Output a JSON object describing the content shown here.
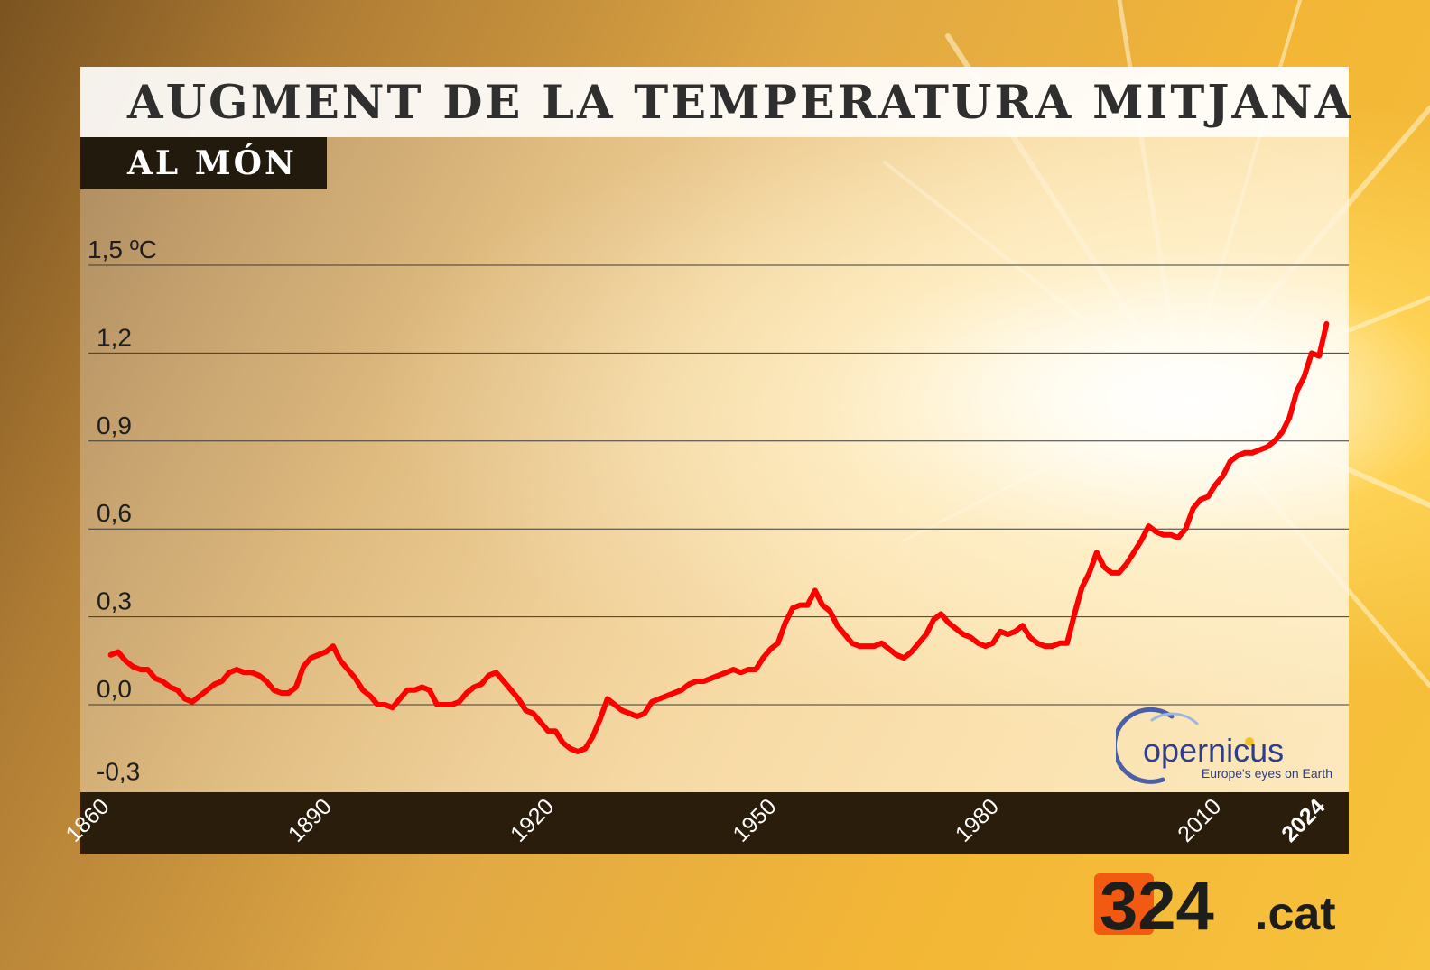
{
  "title": "AUGMENT DE LA TEMPERATURA MITJANA",
  "subtitle": "AL MÓN",
  "logos": {
    "copernicus_name": "opernicus",
    "copernicus_tagline": "Europe's eyes on Earth",
    "brand_number": "324",
    "brand_suffix": ".cat",
    "brand_color": "#f25a12"
  },
  "colors": {
    "line": "#ff0000",
    "x_band": "#2a1d0c",
    "subtitle_box": "#231a0e"
  },
  "chart_data": {
    "type": "line",
    "title": "AUGMENT DE LA TEMPERATURA MITJANA",
    "subtitle": "AL MÓN",
    "xlabel": "",
    "ylabel": "",
    "xlim": [
      1857,
      2027
    ],
    "ylim": [
      -0.3,
      1.5
    ],
    "grid": true,
    "y_ticks": [
      {
        "value": 1.5,
        "label": "1,5 ºC"
      },
      {
        "value": 1.2,
        "label": "1,2"
      },
      {
        "value": 0.9,
        "label": "0,9"
      },
      {
        "value": 0.6,
        "label": "0,6"
      },
      {
        "value": 0.3,
        "label": "0,3"
      },
      {
        "value": 0.0,
        "label": "0,0"
      },
      {
        "value": -0.3,
        "label": "-0,3"
      }
    ],
    "x_ticks": [
      {
        "value": 1860,
        "label": "1860"
      },
      {
        "value": 1890,
        "label": "1890"
      },
      {
        "value": 1920,
        "label": "1920"
      },
      {
        "value": 1950,
        "label": "1950"
      },
      {
        "value": 1980,
        "label": "1980"
      },
      {
        "value": 2010,
        "label": "2010"
      },
      {
        "value": 2024,
        "label": "2024"
      }
    ],
    "series": [
      {
        "color": "#ff0000",
        "points": [
          [
            1860,
            0.17
          ],
          [
            1861,
            0.18
          ],
          [
            1862,
            0.15
          ],
          [
            1863,
            0.13
          ],
          [
            1864,
            0.12
          ],
          [
            1865,
            0.12
          ],
          [
            1866,
            0.09
          ],
          [
            1867,
            0.08
          ],
          [
            1868,
            0.06
          ],
          [
            1869,
            0.05
          ],
          [
            1870,
            0.02
          ],
          [
            1871,
            0.01
          ],
          [
            1872,
            0.03
          ],
          [
            1873,
            0.05
          ],
          [
            1874,
            0.07
          ],
          [
            1875,
            0.08
          ],
          [
            1876,
            0.11
          ],
          [
            1877,
            0.12
          ],
          [
            1878,
            0.11
          ],
          [
            1879,
            0.11
          ],
          [
            1880,
            0.1
          ],
          [
            1881,
            0.08
          ],
          [
            1882,
            0.05
          ],
          [
            1883,
            0.04
          ],
          [
            1884,
            0.04
          ],
          [
            1885,
            0.06
          ],
          [
            1886,
            0.13
          ],
          [
            1887,
            0.16
          ],
          [
            1888,
            0.17
          ],
          [
            1889,
            0.18
          ],
          [
            1890,
            0.2
          ],
          [
            1891,
            0.15
          ],
          [
            1892,
            0.12
          ],
          [
            1893,
            0.09
          ],
          [
            1894,
            0.05
          ],
          [
            1895,
            0.03
          ],
          [
            1896,
            0.0
          ],
          [
            1897,
            0.0
          ],
          [
            1898,
            -0.01
          ],
          [
            1899,
            0.02
          ],
          [
            1900,
            0.05
          ],
          [
            1901,
            0.05
          ],
          [
            1902,
            0.06
          ],
          [
            1903,
            0.05
          ],
          [
            1904,
            0.0
          ],
          [
            1905,
            0.0
          ],
          [
            1906,
            0.0
          ],
          [
            1907,
            0.01
          ],
          [
            1908,
            0.04
          ],
          [
            1909,
            0.06
          ],
          [
            1910,
            0.07
          ],
          [
            1911,
            0.1
          ],
          [
            1912,
            0.11
          ],
          [
            1913,
            0.08
          ],
          [
            1914,
            0.05
          ],
          [
            1915,
            0.02
          ],
          [
            1916,
            -0.02
          ],
          [
            1917,
            -0.03
          ],
          [
            1918,
            -0.06
          ],
          [
            1919,
            -0.09
          ],
          [
            1920,
            -0.09
          ],
          [
            1921,
            -0.13
          ],
          [
            1922,
            -0.15
          ],
          [
            1923,
            -0.16
          ],
          [
            1924,
            -0.15
          ],
          [
            1925,
            -0.11
          ],
          [
            1926,
            -0.05
          ],
          [
            1927,
            0.02
          ],
          [
            1928,
            0.0
          ],
          [
            1929,
            -0.02
          ],
          [
            1930,
            -0.03
          ],
          [
            1931,
            -0.04
          ],
          [
            1932,
            -0.03
          ],
          [
            1933,
            0.01
          ],
          [
            1934,
            0.02
          ],
          [
            1935,
            0.03
          ],
          [
            1936,
            0.04
          ],
          [
            1937,
            0.05
          ],
          [
            1938,
            0.07
          ],
          [
            1939,
            0.08
          ],
          [
            1940,
            0.08
          ],
          [
            1941,
            0.09
          ],
          [
            1942,
            0.1
          ],
          [
            1943,
            0.11
          ],
          [
            1944,
            0.12
          ],
          [
            1945,
            0.11
          ],
          [
            1946,
            0.12
          ],
          [
            1947,
            0.12
          ],
          [
            1948,
            0.16
          ],
          [
            1949,
            0.19
          ],
          [
            1950,
            0.21
          ],
          [
            1951,
            0.28
          ],
          [
            1952,
            0.33
          ],
          [
            1953,
            0.34
          ],
          [
            1954,
            0.34
          ],
          [
            1955,
            0.39
          ],
          [
            1956,
            0.34
          ],
          [
            1957,
            0.32
          ],
          [
            1958,
            0.27
          ],
          [
            1959,
            0.24
          ],
          [
            1960,
            0.21
          ],
          [
            1961,
            0.2
          ],
          [
            1962,
            0.2
          ],
          [
            1963,
            0.2
          ],
          [
            1964,
            0.21
          ],
          [
            1965,
            0.19
          ],
          [
            1966,
            0.17
          ],
          [
            1967,
            0.16
          ],
          [
            1968,
            0.18
          ],
          [
            1969,
            0.21
          ],
          [
            1970,
            0.24
          ],
          [
            1971,
            0.29
          ],
          [
            1972,
            0.31
          ],
          [
            1973,
            0.28
          ],
          [
            1974,
            0.26
          ],
          [
            1975,
            0.24
          ],
          [
            1976,
            0.23
          ],
          [
            1977,
            0.21
          ],
          [
            1978,
            0.2
          ],
          [
            1979,
            0.21
          ],
          [
            1980,
            0.25
          ],
          [
            1981,
            0.24
          ],
          [
            1982,
            0.25
          ],
          [
            1983,
            0.27
          ],
          [
            1984,
            0.23
          ],
          [
            1985,
            0.21
          ],
          [
            1986,
            0.2
          ],
          [
            1987,
            0.2
          ],
          [
            1988,
            0.21
          ],
          [
            1989,
            0.21
          ],
          [
            1990,
            0.31
          ],
          [
            1991,
            0.4
          ],
          [
            1992,
            0.45
          ],
          [
            1993,
            0.52
          ],
          [
            1994,
            0.47
          ],
          [
            1995,
            0.45
          ],
          [
            1996,
            0.45
          ],
          [
            1997,
            0.48
          ],
          [
            1998,
            0.52
          ],
          [
            1999,
            0.56
          ],
          [
            2000,
            0.61
          ],
          [
            2001,
            0.59
          ],
          [
            2002,
            0.58
          ],
          [
            2003,
            0.58
          ],
          [
            2004,
            0.57
          ],
          [
            2005,
            0.6
          ],
          [
            2006,
            0.67
          ],
          [
            2007,
            0.7
          ],
          [
            2008,
            0.71
          ],
          [
            2009,
            0.75
          ],
          [
            2010,
            0.78
          ],
          [
            2011,
            0.83
          ],
          [
            2012,
            0.85
          ],
          [
            2013,
            0.86
          ],
          [
            2014,
            0.86
          ],
          [
            2015,
            0.87
          ],
          [
            2016,
            0.88
          ],
          [
            2017,
            0.9
          ],
          [
            2018,
            0.93
          ],
          [
            2019,
            0.98
          ],
          [
            2020,
            1.07
          ],
          [
            2021,
            1.12
          ],
          [
            2022,
            1.2
          ],
          [
            2023,
            1.19
          ],
          [
            2024,
            1.3
          ]
        ]
      }
    ]
  }
}
